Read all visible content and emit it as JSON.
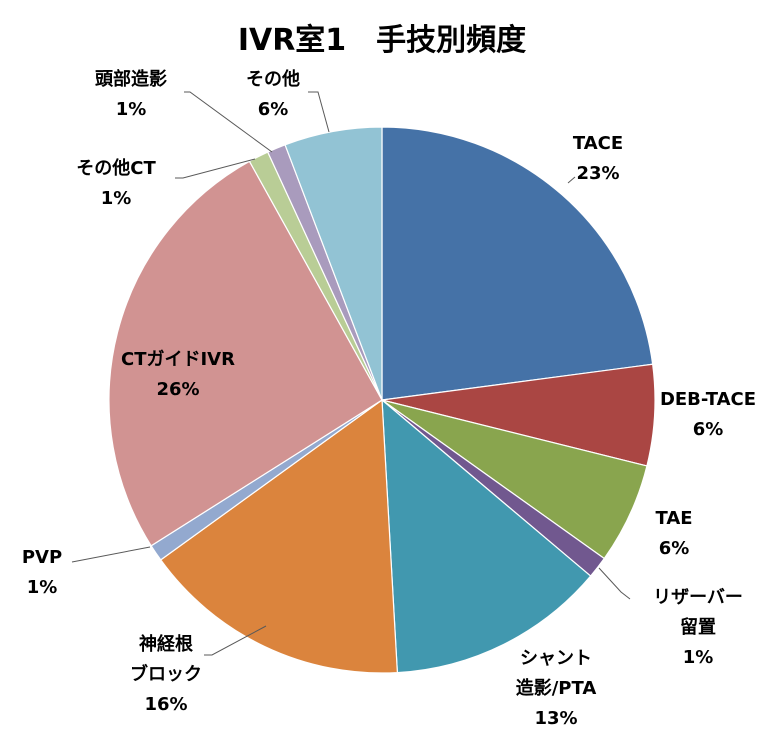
{
  "chart_data": {
    "type": "pie",
    "title": "IVR室1　手技別頻度",
    "slices": [
      {
        "label": [
          "TACE"
        ],
        "pct_label": "23%",
        "value": 23,
        "color": "#4572A7"
      },
      {
        "label": [
          "DEB-TACE"
        ],
        "pct_label": "6%",
        "value": 6,
        "color": "#AA4643"
      },
      {
        "label": [
          "TAE"
        ],
        "pct_label": "6%",
        "value": 6,
        "color": "#89A54E"
      },
      {
        "label": [
          "リザーバー",
          "留置"
        ],
        "pct_label": "1%",
        "value": 1.3,
        "color": "#71588F"
      },
      {
        "label": [
          "シャント",
          "造影/PTA"
        ],
        "pct_label": "13%",
        "value": 13,
        "color": "#4198AF"
      },
      {
        "label": [
          "神経根",
          "ブロック"
        ],
        "pct_label": "16%",
        "value": 16,
        "color": "#DB843D"
      },
      {
        "label": [
          "PVP"
        ],
        "pct_label": "1%",
        "value": 1,
        "color": "#93A9CF"
      },
      {
        "label": [
          "CTガイドIVR"
        ],
        "pct_label": "26%",
        "value": 26,
        "color": "#D19392"
      },
      {
        "label": [
          "その他CT"
        ],
        "pct_label": "1%",
        "value": 1.2,
        "color": "#B9CD96"
      },
      {
        "label": [
          "頭部造影"
        ],
        "pct_label": "1%",
        "value": 1.1,
        "color": "#A99BBD"
      },
      {
        "label": [
          "その他"
        ],
        "pct_label": "6%",
        "value": 5.8,
        "color": "#92C3D4"
      }
    ]
  }
}
